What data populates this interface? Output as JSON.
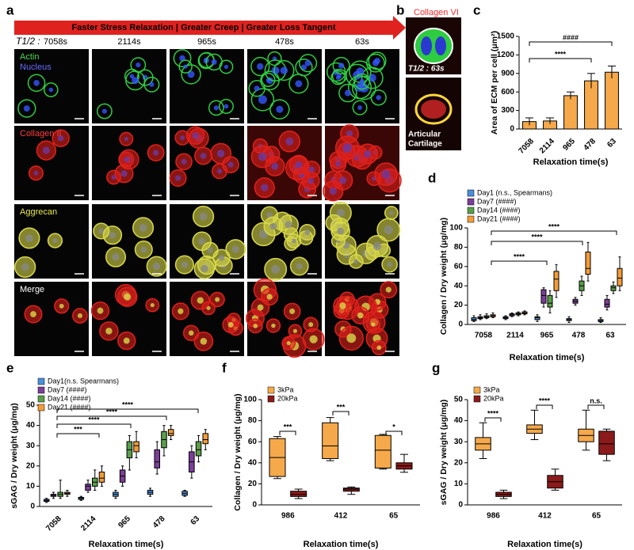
{
  "panel_a": {
    "label": "a",
    "banner": "Faster Stress Relaxation | Greater Creep | Greater Loss Tangent",
    "t_half_label": "T1/2 :",
    "times": [
      "7058s",
      "2114s",
      "965s",
      "478s",
      "63s"
    ],
    "row_labels": [
      [
        "Actin",
        "Nucleus"
      ],
      [
        "Collagen II"
      ],
      [
        "Aggrecan"
      ],
      [
        "Merge"
      ]
    ]
  },
  "panel_b": {
    "label": "b",
    "stain": "Collagen VI",
    "t_half": "T1/2 : 63s",
    "tissue": [
      "Articular",
      "Cartilage"
    ]
  },
  "chart_data": [
    {
      "type": "bar",
      "label": "c",
      "ylabel": "Area of ECM per cell (μm²)",
      "xlabel": "Relaxation time(s)",
      "categories": [
        "7058",
        "2114",
        "965",
        "478",
        "63"
      ],
      "values": [
        120,
        130,
        540,
        780,
        920
      ],
      "errors": [
        60,
        50,
        60,
        120,
        100
      ],
      "color": "#f5a94a",
      "ylim": [
        0,
        1500
      ],
      "yticks": [
        0,
        300,
        600,
        900,
        1200,
        1500
      ],
      "annotations": [
        "####",
        "****"
      ]
    },
    {
      "type": "box",
      "label": "d",
      "ylabel": "Collagen / Dry weight (μg/mg)",
      "xlabel": "Relaxation time(s)",
      "categories": [
        "7058",
        "2114",
        "965",
        "478",
        "63"
      ],
      "ylim": [
        0,
        100
      ],
      "yticks": [
        0,
        20,
        40,
        60,
        80,
        100
      ],
      "annotations": [
        "****",
        "****",
        "****"
      ],
      "series": [
        {
          "name": "Day1 (n.s., Spearmans)",
          "color": "#4a90d9",
          "boxes": [
            [
              3,
              4,
              5,
              7,
              9
            ],
            [
              5,
              6,
              7,
              8,
              9
            ],
            [
              3,
              5,
              7,
              8,
              10
            ],
            [
              2,
              4,
              5,
              6,
              8
            ],
            [
              2,
              3,
              4,
              5,
              7
            ]
          ]
        },
        {
          "name": "Day7 (####)",
          "color": "#7b3f98",
          "boxes": [
            [
              5,
              6,
              7,
              8,
              10
            ],
            [
              8,
              9,
              10,
              11,
              12
            ],
            [
              18,
              22,
              30,
              36,
              38
            ],
            [
              20,
              22,
              24,
              26,
              28
            ],
            [
              15,
              18,
              21,
              26,
              30
            ]
          ]
        },
        {
          "name": "Day14 (####)",
          "color": "#5a9e4a",
          "boxes": [
            [
              6,
              7,
              8,
              9,
              11
            ],
            [
              9,
              10,
              11,
              12,
              13
            ],
            [
              12,
              18,
              22,
              30,
              35
            ],
            [
              30,
              35,
              40,
              45,
              50
            ],
            [
              32,
              35,
              38,
              40,
              44
            ]
          ]
        },
        {
          "name": "Day21 (####)",
          "color": "#f39c38",
          "boxes": [
            [
              7,
              8,
              9,
              10,
              12
            ],
            [
              10,
              11,
              12,
              13,
              14
            ],
            [
              28,
              35,
              47,
              55,
              62
            ],
            [
              45,
              52,
              58,
              75,
              85
            ],
            [
              35,
              40,
              48,
              58,
              70
            ]
          ]
        }
      ]
    },
    {
      "type": "box",
      "label": "e",
      "ylabel": "sGAG / Dry weight (μg/mg)",
      "xlabel": "Relaxation time(s)",
      "categories": [
        "7058",
        "2114",
        "965",
        "478",
        "63"
      ],
      "ylim": [
        0,
        50
      ],
      "yticks": [
        0,
        10,
        20,
        30,
        40,
        50
      ],
      "annotations": [
        "***",
        "****",
        "****",
        "****"
      ],
      "series": [
        {
          "name": "Day1(n.s. Spearmans)",
          "color": "#4a90d9",
          "boxes": [
            [
              2,
              2.5,
              3,
              3.5,
              4
            ],
            [
              3,
              3.5,
              4,
              4.5,
              5
            ],
            [
              4,
              5,
              6,
              7,
              8
            ],
            [
              5,
              6,
              7,
              8,
              9
            ],
            [
              5,
              5.5,
              6.5,
              7.5,
              8
            ]
          ]
        },
        {
          "name": "Day7 (####)",
          "color": "#7b3f98",
          "boxes": [
            [
              4,
              5,
              5.5,
              6,
              7
            ],
            [
              7,
              8,
              10,
              11,
              13
            ],
            [
              10,
              12,
              15,
              18,
              20
            ],
            [
              16,
              19,
              22,
              28,
              32
            ],
            [
              14,
              17,
              22,
              27,
              30
            ]
          ]
        },
        {
          "name": "Day14 (####)",
          "color": "#5a9e4a",
          "boxes": [
            [
              4,
              5,
              6,
              7,
              13
            ],
            [
              8,
              10,
              12,
              14,
              18
            ],
            [
              18,
              24,
              28,
              32,
              35
            ],
            [
              25,
              29,
              33,
              37,
              40
            ],
            [
              22,
              25,
              28,
              32,
              35
            ]
          ]
        },
        {
          "name": "Day21 (####)",
          "color": "#f39c38",
          "boxes": [
            [
              5,
              6,
              6.5,
              7,
              8
            ],
            [
              10,
              12,
              14,
              17,
              20
            ],
            [
              24,
              27,
              30,
              32,
              37
            ],
            [
              33,
              35,
              36,
              38,
              40
            ],
            [
              28,
              31,
              33,
              36,
              38
            ]
          ]
        }
      ]
    },
    {
      "type": "box",
      "label": "f",
      "ylabel": "Collagen / Dry weight (μg/mg)",
      "xlabel": "Relaxation time(s)",
      "categories": [
        "986",
        "412",
        "65"
      ],
      "ylim": [
        0,
        100
      ],
      "yticks": [
        0,
        20,
        40,
        60,
        80,
        100
      ],
      "annotations": [
        "***",
        "***",
        "*"
      ],
      "series": [
        {
          "name": "3kPa",
          "color": "#f5a94a",
          "boxes": [
            [
              25,
              27,
              45,
              63,
              65
            ],
            [
              42,
              44,
              56,
              78,
              83
            ],
            [
              34,
              35,
              52,
              66,
              67
            ]
          ]
        },
        {
          "name": "20kPa",
          "color": "#8b1a1a",
          "boxes": [
            [
              6,
              8,
              10,
              13,
              15
            ],
            [
              10,
              13,
              15,
              16,
              17
            ],
            [
              31,
              34,
              37,
              40,
              48
            ]
          ]
        }
      ]
    },
    {
      "type": "box",
      "label": "g",
      "ylabel": "sGAG / Dry weight (μg/mg)",
      "xlabel": "Relaxation time(s)",
      "categories": [
        "986",
        "412",
        "65"
      ],
      "ylim": [
        0,
        50
      ],
      "yticks": [
        0,
        10,
        20,
        30,
        40,
        50
      ],
      "annotations": [
        "****",
        "****",
        "n.s."
      ],
      "series": [
        {
          "name": "3kPa",
          "color": "#f5a94a",
          "boxes": [
            [
              22,
              26,
              29,
              32,
              39
            ],
            [
              31,
              34,
              36,
              38,
              45
            ],
            [
              26,
              30,
              33,
              36,
              45
            ]
          ]
        },
        {
          "name": "20kPa",
          "color": "#8b1a1a",
          "boxes": [
            [
              3,
              4,
              5,
              6,
              7
            ],
            [
              7,
              8,
              11,
              14,
              17
            ],
            [
              21,
              24,
              29,
              35,
              36
            ]
          ]
        }
      ]
    }
  ]
}
